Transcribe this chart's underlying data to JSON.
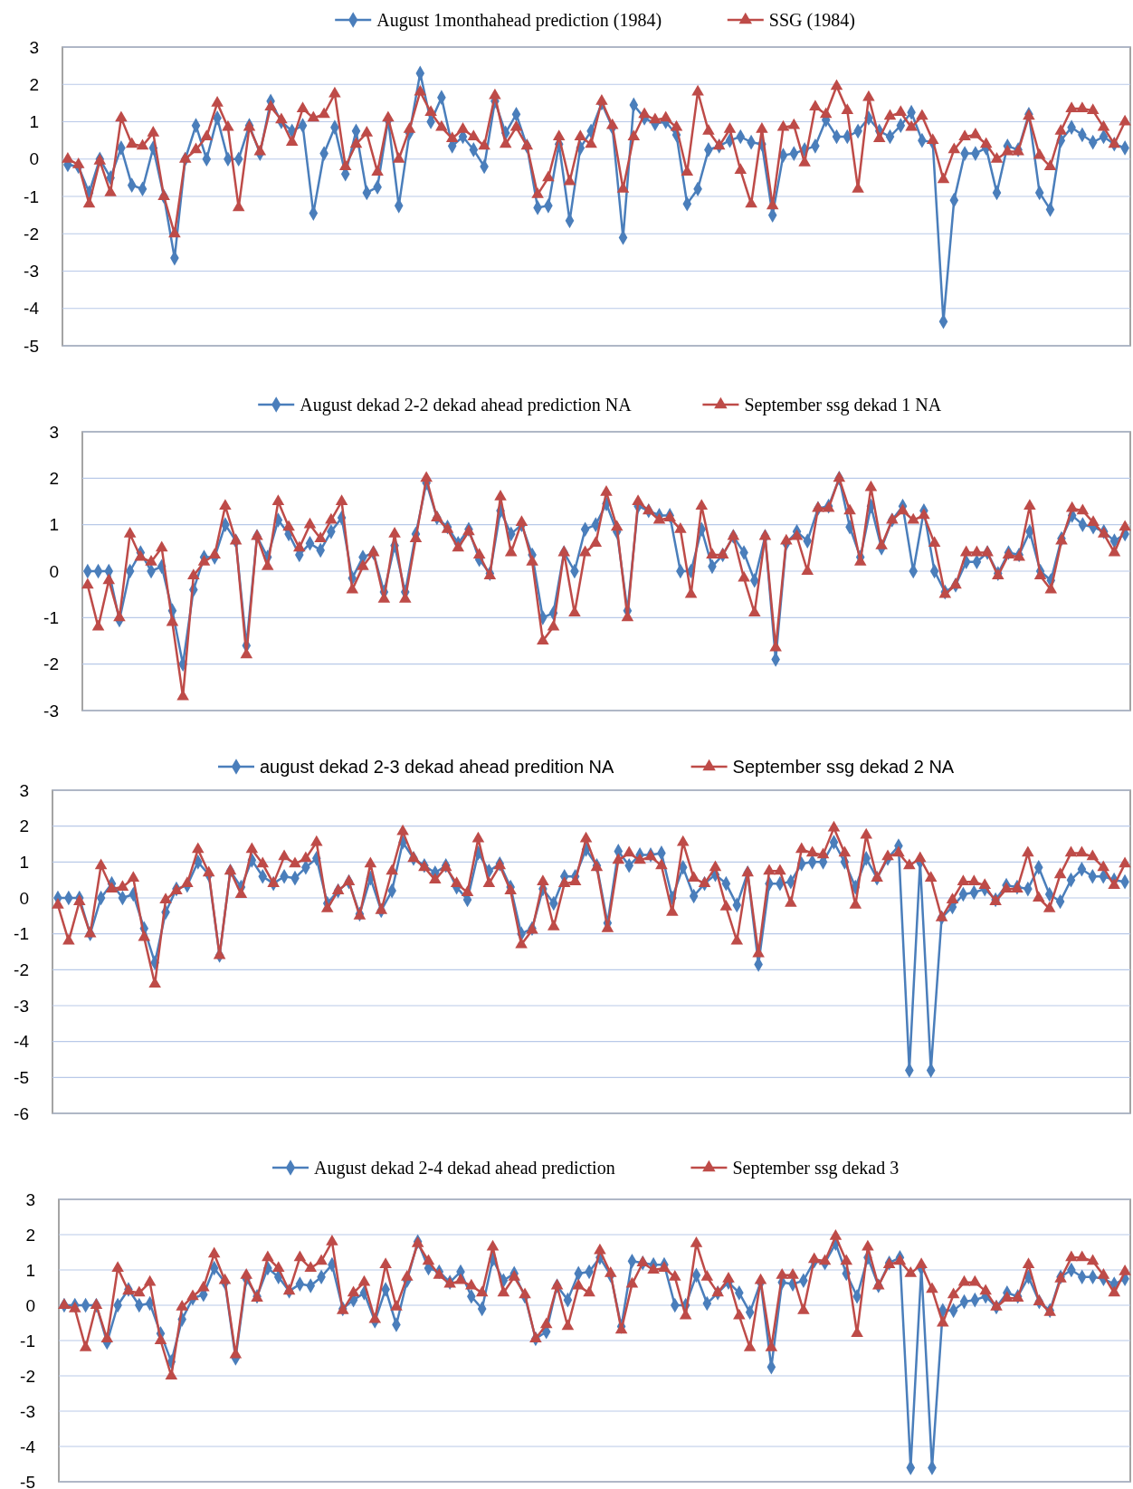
{
  "chart_data": [
    {
      "type": "line",
      "categories": [
        null,
        null,
        null,
        null,
        null,
        null,
        null,
        null,
        null,
        null,
        null,
        null,
        null,
        null,
        null,
        null,
        null,
        null,
        null,
        null,
        null,
        null,
        null,
        null,
        null,
        null,
        null,
        null,
        null,
        null,
        null,
        null,
        null,
        null,
        null,
        null,
        null,
        null,
        null,
        null,
        null,
        null,
        null,
        null,
        null,
        null,
        null,
        null,
        null,
        null,
        null,
        null,
        null,
        null,
        null,
        null,
        null,
        null,
        null,
        null,
        null,
        null,
        null,
        null,
        null,
        null,
        null,
        null,
        null,
        null,
        null,
        null,
        null,
        null,
        null,
        null,
        null,
        null,
        null,
        null,
        null,
        null,
        null,
        null,
        null,
        null,
        null,
        null,
        null,
        null,
        null,
        null,
        null,
        null,
        null,
        null,
        null,
        null,
        null,
        null
      ],
      "ylim": [
        -5,
        3
      ],
      "yticks": [
        -5,
        -4,
        -3,
        -2,
        -1,
        0,
        1,
        2,
        3
      ],
      "grid": "y",
      "legend": "top",
      "series": [
        {
          "name": "August 1monthahead prediction (1984)",
          "color": "#4a7ebb",
          "marker": "diamond",
          "values": [
            -0.15,
            -0.2,
            -0.9,
            0,
            -0.5,
            0.3,
            -0.7,
            -0.8,
            0.3,
            -1,
            -2.65,
            0,
            0.9,
            0,
            1.1,
            0,
            0,
            0.9,
            0.15,
            1.55,
            1,
            0.75,
            0.9,
            -1.45,
            0.15,
            0.85,
            -0.4,
            0.75,
            -0.9,
            -0.75,
            1.05,
            -1.25,
            0.7,
            2.3,
            1,
            1.65,
            0.35,
            0.6,
            0.25,
            -0.2,
            1.55,
            0.7,
            1.2,
            0.35,
            -1.3,
            -1.25,
            0.4,
            -1.65,
            0.3,
            0.75,
            1.5,
            0.85,
            -2.1,
            1.45,
            1.1,
            0.95,
            1,
            0.65,
            -1.2,
            -0.8,
            0.25,
            0.35,
            0.5,
            0.6,
            0.45,
            0.4,
            -1.5,
            0.1,
            0.15,
            0.25,
            0.35,
            1.05,
            0.6,
            0.6,
            0.75,
            1.1,
            0.75,
            0.6,
            0.9,
            1.25,
            0.5,
            0.45,
            -4.35,
            -1.1,
            0.15,
            0.15,
            0.3,
            -0.9,
            0.35,
            0.25,
            1.2,
            -0.9,
            -1.35,
            0.5,
            0.85,
            0.65,
            0.45,
            0.6,
            0.4,
            0.3
          ]
        },
        {
          "name": "SSG (1984)",
          "color": "#be4b48",
          "marker": "triangle",
          "values": [
            0,
            -0.15,
            -1.2,
            -0.05,
            -0.9,
            1.1,
            0.4,
            0.35,
            0.7,
            -1,
            -2,
            0,
            0.25,
            0.6,
            1.5,
            0.85,
            -1.3,
            0.85,
            0.2,
            1.4,
            1.05,
            0.45,
            1.35,
            1.1,
            1.2,
            1.75,
            -0.2,
            0.4,
            0.7,
            -0.35,
            1.1,
            0,
            0.8,
            1.8,
            1.25,
            0.85,
            0.55,
            0.8,
            0.6,
            0.35,
            1.7,
            0.4,
            0.85,
            0.35,
            -0.95,
            -0.5,
            0.6,
            -0.6,
            0.6,
            0.4,
            1.55,
            0.9,
            -0.8,
            0.6,
            1.2,
            1.05,
            1.1,
            0.85,
            -0.35,
            1.8,
            0.75,
            0.35,
            0.8,
            -0.3,
            -1.2,
            0.8,
            -1.25,
            0.85,
            0.9,
            -0.1,
            1.4,
            1.2,
            1.95,
            1.3,
            -0.8,
            1.65,
            0.55,
            1.15,
            1.25,
            0.85,
            1.15,
            0.5,
            -0.55,
            0.25,
            0.6,
            0.65,
            0.4,
            0,
            0.2,
            0.2,
            1.15,
            0.1,
            -0.2,
            0.75,
            1.35,
            1.35,
            1.3,
            0.85,
            0.4,
            1
          ]
        }
      ]
    },
    {
      "type": "line",
      "categories": [
        null,
        null,
        null,
        null,
        null,
        null,
        null,
        null,
        null,
        null,
        null,
        null,
        null,
        null,
        null,
        null,
        null,
        null,
        null,
        null,
        null,
        null,
        null,
        null,
        null,
        null,
        null,
        null,
        null,
        null,
        null,
        null,
        null,
        null,
        null,
        null,
        null,
        null,
        null,
        null,
        null,
        null,
        null,
        null,
        null,
        null,
        null,
        null,
        null,
        null,
        null,
        null,
        null,
        null,
        null,
        null,
        null,
        null,
        null,
        null,
        null,
        null,
        null,
        null,
        null,
        null,
        null,
        null,
        null,
        null,
        null,
        null,
        null,
        null,
        null,
        null,
        null,
        null,
        null,
        null,
        null,
        null,
        null,
        null,
        null,
        null,
        null,
        null,
        null,
        null,
        null,
        null,
        null,
        null,
        null,
        null,
        null,
        null,
        null
      ],
      "ylim": [
        -3,
        3
      ],
      "yticks": [
        -3,
        -2,
        -1,
        0,
        1,
        2,
        3
      ],
      "grid": "y",
      "legend": "top",
      "series": [
        {
          "name": "August dekad 2-2 dekad ahead prediction NA",
          "color": "#4a7ebb",
          "marker": "diamond",
          "values": [
            0,
            0,
            0,
            -1.05,
            0,
            0.4,
            0,
            0.1,
            -0.85,
            -2,
            -0.4,
            0.3,
            0.3,
            1,
            0.65,
            -1.6,
            0.75,
            0.3,
            1.1,
            0.8,
            0.35,
            0.6,
            0.45,
            0.85,
            1.15,
            -0.15,
            0.3,
            0.4,
            -0.45,
            0.55,
            -0.45,
            0.8,
            1.9,
            1.15,
            0.95,
            0.6,
            0.9,
            0.25,
            -0.05,
            1.3,
            0.8,
            1,
            0.35,
            -1,
            -0.9,
            0.4,
            0,
            0.9,
            1,
            1.45,
            0.85,
            -0.85,
            1.4,
            1.3,
            1.2,
            1.2,
            0,
            0,
            0.9,
            0.1,
            0.35,
            0.75,
            0.4,
            -0.2,
            0.75,
            -1.9,
            0.6,
            0.85,
            0.65,
            1.35,
            1.4,
            2,
            0.95,
            0.3,
            1.4,
            0.5,
            1.1,
            1.4,
            0,
            1.3,
            0,
            -0.45,
            -0.3,
            0.2,
            0.2,
            0.4,
            -0.05,
            0.4,
            0.35,
            0.85,
            0,
            -0.2,
            0.7,
            1.2,
            1,
            0.95,
            0.85,
            0.65,
            0.8
          ]
        },
        {
          "name": "September ssg dekad 1 NA",
          "color": "#be4b48",
          "marker": "triangle",
          "values": [
            -0.3,
            -1.2,
            -0.2,
            -1,
            0.8,
            0.3,
            0.2,
            0.5,
            -1.1,
            -2.7,
            -0.1,
            0.2,
            0.35,
            1.4,
            0.65,
            -1.8,
            0.75,
            0.1,
            1.5,
            0.95,
            0.5,
            1,
            0.7,
            1.1,
            1.5,
            -0.4,
            0.1,
            0.4,
            -0.6,
            0.8,
            -0.6,
            0.7,
            2,
            1.15,
            0.9,
            0.5,
            0.85,
            0.35,
            -0.1,
            1.6,
            0.4,
            1.05,
            0.2,
            -1.5,
            -1.2,
            0.4,
            -0.9,
            0.4,
            0.6,
            1.7,
            0.95,
            -1,
            1.5,
            1.3,
            1.1,
            1.15,
            0.9,
            -0.5,
            1.4,
            0.35,
            0.35,
            0.75,
            -0.15,
            -0.9,
            0.75,
            -1.65,
            0.65,
            0.75,
            0,
            1.35,
            1.35,
            2,
            1.3,
            0.2,
            1.8,
            0.55,
            1.1,
            1.3,
            1.1,
            1.2,
            0.6,
            -0.5,
            -0.3,
            0.4,
            0.4,
            0.4,
            -0.1,
            0.35,
            0.3,
            1.4,
            -0.1,
            -0.4,
            0.65,
            1.35,
            1.3,
            1.05,
            0.8,
            0.4,
            0.95
          ]
        }
      ]
    },
    {
      "type": "line",
      "categories": [
        null,
        null,
        null,
        null,
        null,
        null,
        null,
        null,
        null,
        null,
        null,
        null,
        null,
        null,
        null,
        null,
        null,
        null,
        null,
        null,
        null,
        null,
        null,
        null,
        null,
        null,
        null,
        null,
        null,
        null,
        null,
        null,
        null,
        null,
        null,
        null,
        null,
        null,
        null,
        null,
        null,
        null,
        null,
        null,
        null,
        null,
        null,
        null,
        null,
        null,
        null,
        null,
        null,
        null,
        null,
        null,
        null,
        null,
        null,
        null,
        null,
        null,
        null,
        null,
        null,
        null,
        null,
        null,
        null,
        null,
        null,
        null,
        null,
        null,
        null,
        null,
        null,
        null,
        null,
        null,
        null,
        null,
        null,
        null,
        null,
        null,
        null,
        null,
        null,
        null,
        null,
        null,
        null,
        null,
        null,
        null,
        null,
        null,
        null,
        null
      ],
      "ylim": [
        -6,
        3
      ],
      "yticks": [
        -6,
        -5,
        -4,
        -3,
        -2,
        -1,
        0,
        1,
        2,
        3
      ],
      "grid": "y",
      "legend": "top",
      "series": [
        {
          "name": "august dekad 2-3 dekad ahead predition NA",
          "color": "#4a7ebb",
          "marker": "diamond",
          "values": [
            0,
            0,
            0,
            -1,
            0,
            0.4,
            0,
            0.1,
            -0.85,
            -1.8,
            -0.4,
            0.25,
            0.35,
            1,
            0.65,
            -1.6,
            0.75,
            0.3,
            1.05,
            0.6,
            0.4,
            0.6,
            0.55,
            0.85,
            1.1,
            -0.15,
            0.2,
            0.45,
            -0.45,
            0.55,
            -0.35,
            0.2,
            1.55,
            1.1,
            0.9,
            0.7,
            0.9,
            0.3,
            -0.05,
            1.25,
            0.75,
            0.95,
            0.3,
            -1,
            -0.85,
            0.25,
            -0.15,
            0.6,
            0.6,
            1.35,
            0.9,
            -0.7,
            1.3,
            0.9,
            1.2,
            1.2,
            1.25,
            0,
            0.85,
            0.05,
            0.4,
            0.65,
            0.4,
            -0.2,
            0.7,
            -1.85,
            0.4,
            0.4,
            0.45,
            0.95,
            1,
            1,
            1.55,
            1,
            0.3,
            1.1,
            0.55,
            1.1,
            1.45,
            -4.8,
            1,
            -4.8,
            -0.55,
            -0.25,
            0.1,
            0.15,
            0.25,
            -0.05,
            0.35,
            0.3,
            0.25,
            0.85,
            0.1,
            -0.1,
            0.5,
            0.8,
            0.6,
            0.6,
            0.5,
            0.45
          ]
        },
        {
          "name": "September ssg dekad 2 NA",
          "color": "#be4b48",
          "marker": "triangle",
          "values": [
            -0.2,
            -1.2,
            -0.1,
            -1,
            0.9,
            0.25,
            0.3,
            0.55,
            -1.1,
            -2.4,
            -0.05,
            0.2,
            0.4,
            1.35,
            0.7,
            -1.6,
            0.75,
            0.1,
            1.35,
            0.95,
            0.4,
            1.15,
            0.95,
            1.1,
            1.55,
            -0.3,
            0.2,
            0.45,
            -0.5,
            0.95,
            -0.35,
            0.75,
            1.85,
            1.1,
            0.85,
            0.5,
            0.85,
            0.4,
            0.15,
            1.65,
            0.4,
            0.9,
            0.2,
            -1.3,
            -0.9,
            0.45,
            -0.8,
            0.4,
            0.45,
            1.65,
            0.85,
            -0.85,
            1.05,
            1.25,
            1.05,
            1.15,
            0.9,
            -0.4,
            1.55,
            0.55,
            0.4,
            0.85,
            -0.25,
            -1.2,
            0.7,
            -1.55,
            0.75,
            0.75,
            -0.15,
            1.35,
            1.25,
            1.2,
            1.95,
            1.25,
            -0.2,
            1.75,
            0.55,
            1.15,
            1.25,
            0.9,
            1.1,
            0.55,
            -0.55,
            -0.05,
            0.45,
            0.45,
            0.35,
            -0.1,
            0.25,
            0.25,
            1.25,
            0,
            -0.3,
            0.65,
            1.25,
            1.25,
            1.15,
            0.85,
            0.35,
            0.95
          ]
        }
      ]
    },
    {
      "type": "line",
      "categories": [
        null,
        null,
        null,
        null,
        null,
        null,
        null,
        null,
        null,
        null,
        null,
        null,
        null,
        null,
        null,
        null,
        null,
        null,
        null,
        null,
        null,
        null,
        null,
        null,
        null,
        null,
        null,
        null,
        null,
        null,
        null,
        null,
        null,
        null,
        null,
        null,
        null,
        null,
        null,
        null,
        null,
        null,
        null,
        null,
        null,
        null,
        null,
        null,
        null,
        null,
        null,
        null,
        null,
        null,
        null,
        null,
        null,
        null,
        null,
        null,
        null,
        null,
        null,
        null,
        null,
        null,
        null,
        null,
        null,
        null,
        null,
        null,
        null,
        null,
        null,
        null,
        null,
        null,
        null,
        null,
        null,
        null,
        null,
        null,
        null,
        null,
        null,
        null,
        null,
        null,
        null,
        null,
        null,
        null,
        null,
        null,
        null,
        null,
        null,
        null
      ],
      "ylim": [
        -5,
        3
      ],
      "yticks": [
        -5,
        -4,
        -3,
        -2,
        -1,
        0,
        1,
        2,
        3
      ],
      "grid": "y",
      "legend": "top",
      "series": [
        {
          "name": "August dekad 2-4 dekad ahead prediction",
          "color": "#4a7ebb",
          "marker": "diamond",
          "values": [
            0,
            0,
            0,
            0,
            -1.05,
            0,
            0.45,
            0,
            0.05,
            -0.8,
            -1.6,
            -0.4,
            0.2,
            0.3,
            1.05,
            0.65,
            -1.5,
            0.75,
            0.25,
            1.05,
            0.8,
            0.4,
            0.6,
            0.55,
            0.8,
            1.15,
            -0.1,
            0.15,
            0.35,
            -0.45,
            0.45,
            -0.55,
            0.7,
            1.8,
            1.05,
            0.95,
            0.65,
            0.95,
            0.25,
            -0.1,
            1.3,
            0.7,
            0.9,
            0.25,
            -0.95,
            -0.75,
            0.55,
            0.15,
            0.9,
            0.95,
            1.35,
            0.85,
            -0.6,
            1.25,
            1.2,
            1.15,
            1.15,
            0,
            0,
            0.85,
            0.05,
            0.35,
            0.65,
            0.35,
            -0.2,
            0.65,
            -1.75,
            0.65,
            0.6,
            0.7,
            1.25,
            1.2,
            1.75,
            0.9,
            0.25,
            1.35,
            0.55,
            1.2,
            1.35,
            -4.6,
            1.05,
            -4.6,
            -0.15,
            -0.15,
            0.1,
            0.15,
            0.25,
            -0.05,
            0.35,
            0.25,
            0.8,
            0.1,
            -0.15,
            0.8,
            1,
            0.8,
            0.8,
            0.75,
            0.6,
            0.75
          ]
        },
        {
          "name": "September ssg dekad 3",
          "color": "#be4b48",
          "marker": "triangle",
          "values": [
            0,
            -0.1,
            -1.2,
            0,
            -0.95,
            1.05,
            0.4,
            0.35,
            0.65,
            -1,
            -2,
            -0.05,
            0.25,
            0.5,
            1.45,
            0.7,
            -1.4,
            0.85,
            0.2,
            1.35,
            1.05,
            0.4,
            1.35,
            1.05,
            1.25,
            1.8,
            -0.15,
            0.35,
            0.65,
            -0.4,
            1.15,
            -0.05,
            0.8,
            1.75,
            1.25,
            0.85,
            0.6,
            0.7,
            0.55,
            0.35,
            1.65,
            0.35,
            0.8,
            0.3,
            -0.95,
            -0.55,
            0.55,
            -0.6,
            0.55,
            0.35,
            1.55,
            0.9,
            -0.7,
            0.6,
            1.2,
            1,
            1.05,
            0.8,
            -0.3,
            1.75,
            0.8,
            0.35,
            0.75,
            -0.3,
            -1.2,
            0.7,
            -1.2,
            0.85,
            0.85,
            -0.15,
            1.3,
            1.25,
            1.95,
            1.25,
            -0.8,
            1.65,
            0.55,
            1.15,
            1.25,
            0.9,
            1.15,
            0.45,
            -0.5,
            0.3,
            0.65,
            0.65,
            0.4,
            -0.05,
            0.2,
            0.2,
            1.15,
            0.1,
            -0.2,
            0.75,
            1.35,
            1.35,
            1.25,
            0.85,
            0.35,
            0.95
          ]
        }
      ]
    }
  ]
}
